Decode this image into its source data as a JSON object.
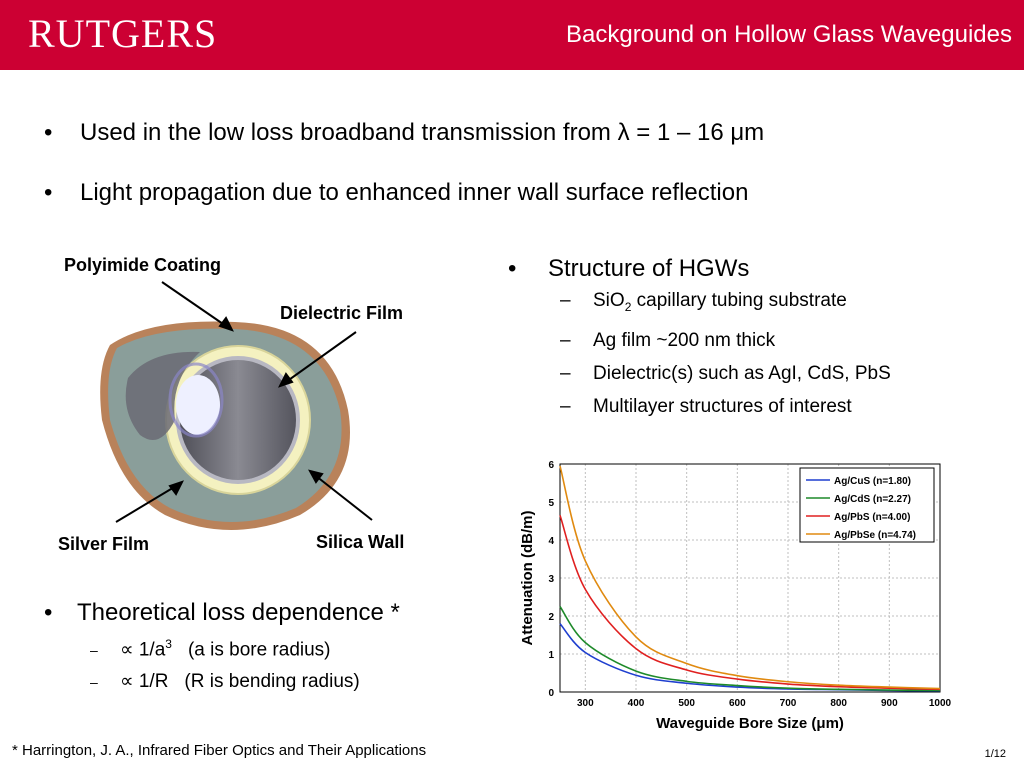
{
  "header": {
    "logo_text": "RUTGERS",
    "title": "Background on Hollow Glass Waveguides",
    "color": "#cc0033"
  },
  "top_bullets": [
    "Used in the low loss broadband transmission from λ = 1 – 16 μm",
    "Light propagation due to enhanced inner wall surface reflection"
  ],
  "diagram": {
    "labels": {
      "polyimide": "Polyimide Coating",
      "dielectric": "Dielectric Film",
      "silver": "Silver Film",
      "silica": "Silica Wall"
    },
    "colors": {
      "polyimide": "#b9825a",
      "silica": "#8a9e9a",
      "dielectric": "#f4f1c0",
      "bore": "#6f6f78"
    }
  },
  "structure": {
    "heading": "Structure of HGWs",
    "items": {
      "sio2_base": "SiO",
      "sio2_sub": "2",
      "sio2_rest": " capillary tubing substrate",
      "ag": "Ag film ~200 nm thick",
      "dielectric": "Dielectric(s) such as AgI, CdS, PbS",
      "multilayer": "Multilayer structures of interest"
    }
  },
  "theory": {
    "heading": "Theoretical loss dependence *",
    "item1_prefix": "∝ 1/a",
    "item1_sup": "3",
    "item1_note": "(a is bore radius)",
    "item2_prefix": "∝ 1/R",
    "item2_note": "(R is bending radius)"
  },
  "footnote": "* Harrington, J. A., Infrared Fiber Optics and Their Applications",
  "page": "1/12",
  "chart_data": {
    "type": "line",
    "xlabel": "Waveguide Bore Size (μm)",
    "ylabel": "Attenuation (dB/m)",
    "xlim": [
      250,
      1000
    ],
    "ylim": [
      0,
      6
    ],
    "xticks": [
      300,
      400,
      500,
      600,
      700,
      800,
      900,
      1000
    ],
    "yticks": [
      0,
      1,
      2,
      3,
      4,
      5,
      6
    ],
    "grid": true,
    "legend_position": "top-right",
    "series": [
      {
        "name": "Ag/CuS (n=1.80)",
        "color": "#1f3fcf",
        "x": [
          250,
          300,
          400,
          500,
          600,
          700,
          800,
          900,
          1000
        ],
        "y": [
          1.8,
          1.04,
          0.44,
          0.23,
          0.13,
          0.08,
          0.06,
          0.04,
          0.03
        ]
      },
      {
        "name": "Ag/CdS (n=2.27)",
        "color": "#1e8a2a",
        "x": [
          250,
          300,
          400,
          500,
          600,
          700,
          800,
          900,
          1000
        ],
        "y": [
          2.25,
          1.3,
          0.55,
          0.28,
          0.17,
          0.1,
          0.07,
          0.05,
          0.04
        ]
      },
      {
        "name": "Ag/PbS (n=4.00)",
        "color": "#e02020",
        "x": [
          250,
          300,
          400,
          500,
          600,
          700,
          800,
          900,
          1000
        ],
        "y": [
          4.65,
          2.7,
          1.14,
          0.58,
          0.34,
          0.21,
          0.14,
          0.1,
          0.07
        ]
      },
      {
        "name": "Ag/PbSe (n=4.74)",
        "color": "#e08a10",
        "x": [
          250,
          300,
          400,
          500,
          600,
          700,
          800,
          900,
          1000
        ],
        "y": [
          5.95,
          3.45,
          1.45,
          0.75,
          0.43,
          0.27,
          0.18,
          0.13,
          0.09
        ]
      }
    ]
  }
}
